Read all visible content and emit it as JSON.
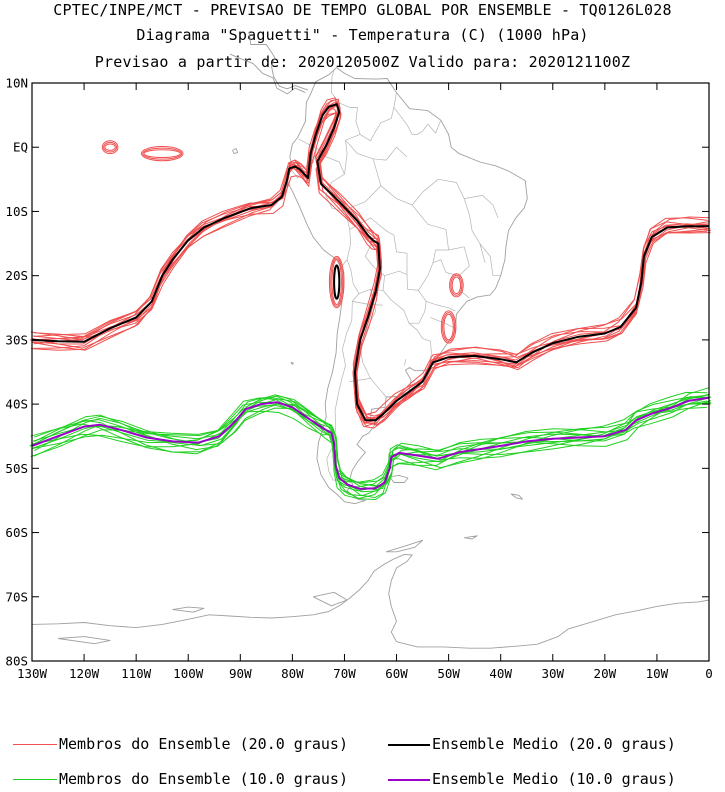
{
  "header": {
    "line1": "CPTEC/INPE/MCT - PREVISAO DE TEMPO GLOBAL POR ENSEMBLE - TQ0126L028",
    "line2": "Diagrama \"Spaguetti\" - Temperatura (C) (1000 hPa)",
    "line3": "Previsao a partir de: 2020120500Z  Valido para: 2020121100Z"
  },
  "legend": [
    {
      "label": "Membros do Ensemble (20.0 graus)",
      "color": "#f05050"
    },
    {
      "label": "Ensemble Medio (20.0 graus)",
      "color": "#000000"
    },
    {
      "label": "Membros do Ensemble (10.0 graus)",
      "color": "#22d022"
    },
    {
      "label": "Ensemble Medio (10.0 graus)",
      "color": "#9a00c8"
    }
  ],
  "chart_data": {
    "type": "line",
    "title": "Diagrama \"Spaguetti\" - Temperatura (C) (1000 hPa)",
    "xlabel": "",
    "ylabel": "",
    "xlim": [
      -130,
      0
    ],
    "ylim": [
      -80,
      10
    ],
    "x_ticks": [
      -130,
      -120,
      -110,
      -100,
      -90,
      -80,
      -70,
      -60,
      -50,
      -40,
      -30,
      -20,
      -10,
      0
    ],
    "x_tick_labels": [
      "130W",
      "120W",
      "110W",
      "100W",
      "90W",
      "80W",
      "70W",
      "60W",
      "50W",
      "40W",
      "30W",
      "20W",
      "10W",
      "0"
    ],
    "y_ticks": [
      10,
      0,
      -10,
      -20,
      -30,
      -40,
      -50,
      -60,
      -70,
      -80
    ],
    "y_tick_labels": [
      "10N",
      "EQ",
      "10S",
      "20S",
      "30S",
      "40S",
      "50S",
      "60S",
      "70S",
      "80S"
    ],
    "grid": false,
    "legend_position": "bottom",
    "series": [
      {
        "name": "Ensemble Medio (20.0 graus)",
        "color": "#000000",
        "points": [
          [
            -130,
            -30
          ],
          [
            -125,
            -30.2
          ],
          [
            -120,
            -30.3
          ],
          [
            -115,
            -28.2
          ],
          [
            -110,
            -26.5
          ],
          [
            -107,
            -24
          ],
          [
            -105,
            -20
          ],
          [
            -103,
            -17.5
          ],
          [
            -100,
            -14.5
          ],
          [
            -97,
            -12.5
          ],
          [
            -93,
            -11
          ],
          [
            -88,
            -9.5
          ],
          [
            -84,
            -9
          ],
          [
            -82,
            -7.7
          ],
          [
            -81,
            -5
          ],
          [
            -80.6,
            -3.3
          ],
          [
            -79.5,
            -3
          ],
          [
            -78.5,
            -3.5
          ],
          [
            -77,
            -4.8
          ],
          [
            -76.5,
            -1
          ],
          [
            -75.5,
            2
          ],
          [
            -74.2,
            5
          ],
          [
            -73,
            6.3
          ],
          [
            -71.5,
            6.7
          ],
          [
            -71,
            5.5
          ],
          [
            -72,
            3
          ],
          [
            -73.5,
            0.3
          ],
          [
            -75.2,
            -2.2
          ],
          [
            -74.5,
            -5.7
          ],
          [
            -71,
            -8.5
          ],
          [
            -67.5,
            -11.5
          ],
          [
            -65.5,
            -13.7
          ],
          [
            -64.5,
            -14.5
          ],
          [
            -63.5,
            -15
          ],
          [
            -63.2,
            -19
          ],
          [
            -64,
            -22.5
          ],
          [
            -65.5,
            -26.5
          ],
          [
            -67,
            -30
          ],
          [
            -68,
            -35
          ],
          [
            -67.6,
            -40
          ],
          [
            -66,
            -42.5
          ],
          [
            -64,
            -42.5
          ],
          [
            -62.5,
            -41.5
          ],
          [
            -60,
            -39.5
          ],
          [
            -57.5,
            -38
          ],
          [
            -55,
            -36.5
          ],
          [
            -53,
            -33.5
          ],
          [
            -50,
            -32.7
          ],
          [
            -45,
            -32.5
          ],
          [
            -40,
            -33
          ],
          [
            -37,
            -33.5
          ],
          [
            -34,
            -32
          ],
          [
            -30,
            -30.5
          ],
          [
            -25,
            -29.5
          ],
          [
            -20,
            -29
          ],
          [
            -17,
            -28
          ],
          [
            -14,
            -25
          ],
          [
            -13,
            -21
          ],
          [
            -12.5,
            -17
          ],
          [
            -11,
            -14
          ],
          [
            -8,
            -12.5
          ],
          [
            -4,
            -12.3
          ],
          [
            0,
            -12.3
          ]
        ]
      },
      {
        "name": "Ensemble Medio (10.0 graus)",
        "color": "#9a00c8",
        "points": [
          [
            -130,
            -46.5
          ],
          [
            -125,
            -45
          ],
          [
            -120,
            -43.5
          ],
          [
            -117,
            -43.2
          ],
          [
            -113,
            -44
          ],
          [
            -108,
            -45.2
          ],
          [
            -103,
            -45.8
          ],
          [
            -98,
            -46
          ],
          [
            -94,
            -45
          ],
          [
            -91,
            -42.7
          ],
          [
            -89,
            -40.8
          ],
          [
            -86,
            -40
          ],
          [
            -83,
            -39.7
          ],
          [
            -80,
            -40.5
          ],
          [
            -77,
            -42.2
          ],
          [
            -74,
            -43.8
          ],
          [
            -72.5,
            -44.5
          ],
          [
            -72,
            -46
          ],
          [
            -71.7,
            -49.5
          ],
          [
            -71,
            -51.5
          ],
          [
            -69.5,
            -52.5
          ],
          [
            -67,
            -53.2
          ],
          [
            -64,
            -53.1
          ],
          [
            -62.3,
            -52.2
          ],
          [
            -61.3,
            -50
          ],
          [
            -61,
            -48.3
          ],
          [
            -59.5,
            -47.6
          ],
          [
            -56,
            -48
          ],
          [
            -52,
            -48.5
          ],
          [
            -48,
            -47.5
          ],
          [
            -44,
            -47
          ],
          [
            -40,
            -46.5
          ],
          [
            -35,
            -45.8
          ],
          [
            -30,
            -45.4
          ],
          [
            -25,
            -45.2
          ],
          [
            -20,
            -45
          ],
          [
            -16,
            -44
          ],
          [
            -14,
            -42.5
          ],
          [
            -11,
            -41.5
          ],
          [
            -7,
            -40.5
          ],
          [
            -4,
            -39.5
          ],
          [
            0,
            -39
          ]
        ]
      }
    ]
  }
}
